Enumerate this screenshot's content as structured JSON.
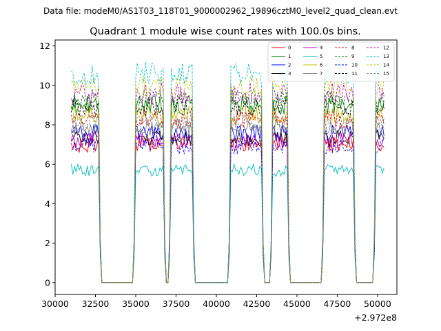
{
  "figure": {
    "suptitle": "Data file: modeM0/AS1T03_118T01_9000002962_19896cztM0_level2_quad_clean.evt"
  },
  "chart_data": {
    "type": "line",
    "title": "Quadrant 1 module wise count rates with 100.0s bins.",
    "xlabel": "",
    "ylabel": "",
    "xlim": [
      30000,
      51200
    ],
    "ylim": [
      -0.6,
      12.3
    ],
    "x_offset_label": "+2.972e8",
    "x_ticks": [
      30000,
      32500,
      35000,
      37500,
      40000,
      42500,
      45000,
      47500,
      50000
    ],
    "x_tick_labels": [
      "30000",
      "32500",
      "35000",
      "37500",
      "40000",
      "42500",
      "45000",
      "47500",
      "50000"
    ],
    "y_ticks": [
      0,
      2,
      4,
      6,
      8,
      10,
      12
    ],
    "y_tick_labels": [
      "0",
      "2",
      "4",
      "6",
      "8",
      "10",
      "12"
    ],
    "grid": false,
    "legend_position": "top-right",
    "legend_columns": 4,
    "on_intervals": [
      [
        31000,
        32700
      ],
      [
        35000,
        36700
      ],
      [
        37200,
        38500
      ],
      [
        40900,
        42800
      ],
      [
        43500,
        44400
      ],
      [
        46700,
        48500
      ],
      [
        49900,
        50400
      ]
    ],
    "series": [
      {
        "name": "0",
        "color": "#ff0000",
        "dash": "solid",
        "level": 7.0
      },
      {
        "name": "1",
        "color": "#008000",
        "dash": "solid",
        "level": 9.0
      },
      {
        "name": "2",
        "color": "#0000ff",
        "dash": "solid",
        "level": 7.6
      },
      {
        "name": "3",
        "color": "#000000",
        "dash": "solid",
        "level": 7.3
      },
      {
        "name": "4",
        "color": "#bf00bf",
        "dash": "solid",
        "level": 7.2
      },
      {
        "name": "5",
        "color": "#00bfbf",
        "dash": "solid",
        "level": 5.7
      },
      {
        "name": "6",
        "color": "#bfbf00",
        "dash": "solid",
        "level": 8.5
      },
      {
        "name": "7",
        "color": "#808080",
        "dash": "solid",
        "level": 7.9
      },
      {
        "name": "8",
        "color": "#ff0000",
        "dash": "dashed",
        "level": 8.3
      },
      {
        "name": "9",
        "color": "#008000",
        "dash": "dashed",
        "level": 9.3
      },
      {
        "name": "10",
        "color": "#0000ff",
        "dash": "dashed",
        "level": 6.9
      },
      {
        "name": "11",
        "color": "#000000",
        "dash": "dashed",
        "level": 8.9
      },
      {
        "name": "12",
        "color": "#bf00bf",
        "dash": "dashed",
        "level": 9.6
      },
      {
        "name": "13",
        "color": "#00bfbf",
        "dash": "dashed",
        "level": 10.6
      },
      {
        "name": "14",
        "color": "#bfbf00",
        "dash": "dashed",
        "level": 9.9
      },
      {
        "name": "15",
        "color": "#808080",
        "dash": "dashed",
        "level": 8.1
      }
    ]
  }
}
